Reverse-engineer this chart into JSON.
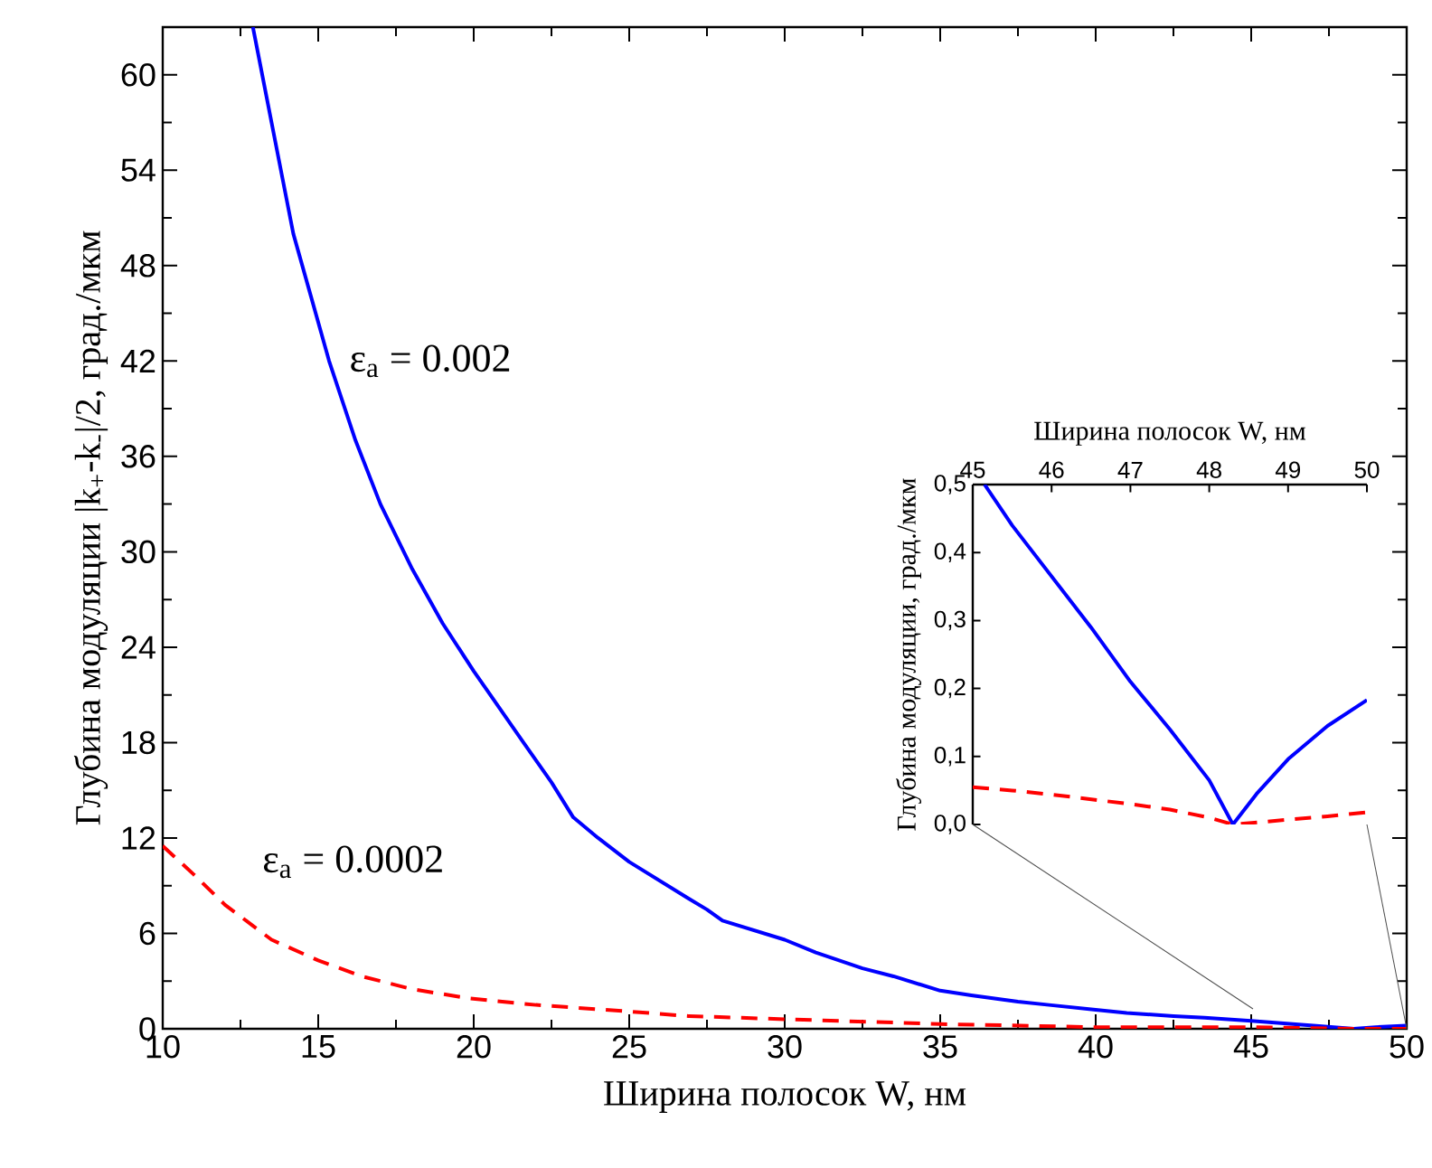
{
  "chart_data": [
    {
      "type": "line",
      "xlabel": "Ширина полосок W, нм",
      "ylabel": "Глубина модуляции |k$_{+}$-k$_{-}$|/2, град./мкм",
      "xlim": [
        10,
        50
      ],
      "ylim": [
        0,
        63
      ],
      "xticks": [
        10,
        15,
        20,
        25,
        30,
        35,
        40,
        45,
        50
      ],
      "yticks": [
        0,
        6,
        12,
        18,
        24,
        30,
        36,
        42,
        48,
        54,
        60
      ],
      "series": [
        {
          "name": "ε$_{a}$ = 0.002",
          "color": "#0000ff",
          "line_style": "solid",
          "x": [
            12.9,
            13.5,
            14.2,
            15.35,
            16.2,
            17,
            18,
            19,
            20,
            21.6,
            22.5,
            23.2,
            24,
            25,
            26.9,
            27.5,
            28,
            30,
            31,
            32.5,
            33.5,
            35,
            36,
            37.5,
            38.5,
            40,
            41,
            42.5,
            43.5,
            45,
            47,
            48.3,
            49,
            50
          ],
          "values": [
            63,
            57,
            50,
            42,
            37,
            33,
            29,
            25.5,
            22.5,
            18,
            15.5,
            13.3,
            12,
            10.5,
            8.2,
            7.5,
            6.8,
            5.6,
            4.8,
            3.8,
            3.3,
            2.4,
            2.1,
            1.7,
            1.5,
            1.2,
            1,
            0.8,
            0.7,
            0.5,
            0.2,
            0,
            0.1,
            0.2
          ]
        },
        {
          "name": "ε$_{a}$ = 0.0002",
          "color": "#ff0000",
          "line_style": "dashed",
          "x": [
            10,
            11,
            12,
            13.5,
            15,
            16.4,
            18,
            19.9,
            22,
            24.9,
            26.9,
            30,
            35,
            40,
            45,
            48.3,
            50
          ],
          "values": [
            11.5,
            9.7,
            7.8,
            5.6,
            4.3,
            3.3,
            2.5,
            1.9,
            1.5,
            1.1,
            0.8,
            0.6,
            0.3,
            0.1,
            0.1,
            0,
            0
          ]
        }
      ]
    },
    {
      "type": "line",
      "xlabel": "Ширина полосок W, нм",
      "ylabel": "Глубина модуляции, град./мкм",
      "xlim": [
        45,
        50
      ],
      "ylim": [
        0,
        0.5
      ],
      "xticks": [
        45,
        46,
        47,
        48,
        49,
        50
      ],
      "yticks": [
        {
          "value": 0,
          "label": "0,0"
        },
        {
          "value": 0.1,
          "label": "0,1"
        },
        {
          "value": 0.2,
          "label": "0,2"
        },
        {
          "value": 0.3,
          "label": "0,3"
        },
        {
          "value": 0.4,
          "label": "0,4"
        },
        {
          "value": 0.5,
          "label": "0,5"
        }
      ],
      "series": [
        {
          "color": "#0000ff",
          "line_style": "solid",
          "x": [
            45.15,
            45.5,
            46,
            46.5,
            47,
            47.5,
            48,
            48.3,
            48.6,
            49,
            49.5,
            50
          ],
          "values": [
            0.5,
            0.44,
            0.365,
            0.29,
            0.21,
            0.14,
            0.065,
            0,
            0.045,
            0.096,
            0.145,
            0.183
          ]
        },
        {
          "color": "#ff0000",
          "line_style": "dashed",
          "x": [
            45,
            45.5,
            46,
            46.5,
            47,
            47.5,
            48,
            48.3,
            48.7,
            49,
            49.5,
            50
          ],
          "values": [
            0.055,
            0.05,
            0.044,
            0.037,
            0.03,
            0.022,
            0.01,
            0,
            0.004,
            0.007,
            0.012,
            0.018
          ]
        }
      ]
    }
  ]
}
